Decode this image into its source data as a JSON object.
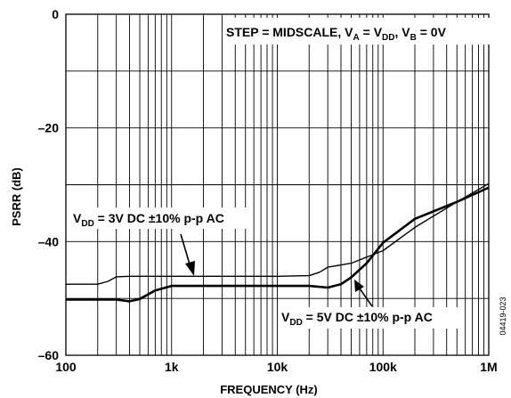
{
  "chart_data": {
    "type": "line",
    "title": "",
    "xlabel": "FREQUENCY (Hz)",
    "ylabel": "PSRR (dB)",
    "x_scale": "log",
    "xlim": [
      100,
      1000000
    ],
    "ylim": [
      -60,
      0
    ],
    "x_ticks": [
      {
        "value": 100,
        "label": "100"
      },
      {
        "value": 1000,
        "label": "1k"
      },
      {
        "value": 10000,
        "label": "10k"
      },
      {
        "value": 100000,
        "label": "100k"
      },
      {
        "value": 1000000,
        "label": "1M"
      }
    ],
    "y_ticks": [
      {
        "value": 0,
        "label": "0"
      },
      {
        "value": -20,
        "label": "–20"
      },
      {
        "value": -40,
        "label": "–40"
      },
      {
        "value": -60,
        "label": "–60"
      }
    ],
    "grid": true,
    "series": [
      {
        "name": "VDD = 3V DC ±10% p-p AC",
        "color": "#000000",
        "x": [
          100,
          200,
          250,
          300,
          400,
          600,
          1000,
          2000,
          5000,
          10000,
          20000,
          25000,
          30000,
          50000,
          100000,
          200000,
          500000,
          1000000
        ],
        "y": [
          -47.5,
          -47.5,
          -47.0,
          -46.2,
          -46.1,
          -46.1,
          -46.1,
          -46.1,
          -46.1,
          -46.1,
          -46.0,
          -45.4,
          -44.5,
          -43.8,
          -41.6,
          -37.5,
          -33.0,
          -29.8
        ]
      },
      {
        "name": "VDD = 5V DC ±10% p-p AC",
        "color": "#000000",
        "x": [
          100,
          200,
          300,
          400,
          500,
          700,
          1000,
          2000,
          5000,
          10000,
          20000,
          30000,
          40000,
          50000,
          70000,
          100000,
          200000,
          500000,
          1000000
        ],
        "y": [
          -50.2,
          -50.2,
          -50.2,
          -50.5,
          -50.1,
          -48.6,
          -47.8,
          -47.8,
          -47.8,
          -47.8,
          -47.8,
          -48.1,
          -47.5,
          -46.3,
          -43.8,
          -40.2,
          -36.0,
          -33.0,
          -30.5
        ]
      }
    ],
    "annotations": {
      "legend_box": {
        "pre": "STEP = MIDSCALE, V",
        "sub_a": "A",
        "mid1": " = V",
        "sub_dd": "DD",
        "mid2": ", V",
        "sub_b": "B",
        "post": " = 0V"
      },
      "series3_label": {
        "pre": "V",
        "sub": "DD",
        "post": " = 3V DC ±10% p-p AC"
      },
      "series5_label": {
        "pre": "V",
        "sub": "DD",
        "post": " = 5V DC ±10% p-p AC"
      },
      "figure_id": "04419-023"
    }
  }
}
